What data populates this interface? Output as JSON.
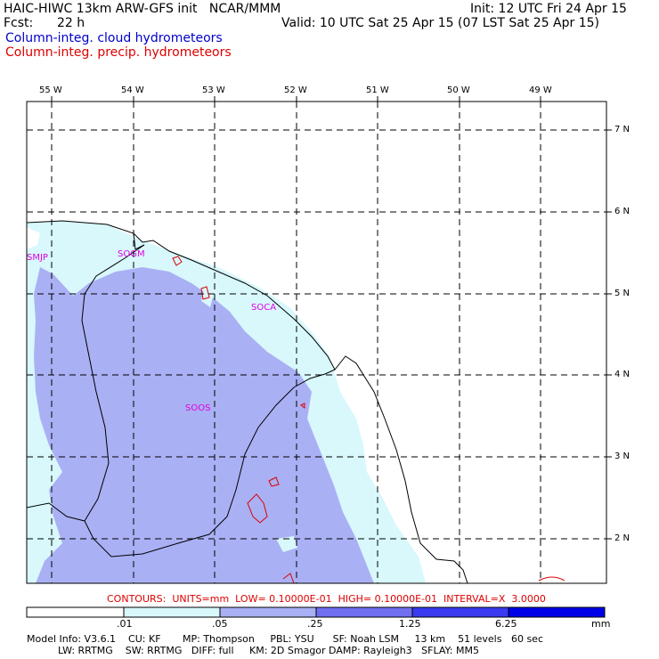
{
  "header": {
    "title_left": "HAIC-HIWC 13km ARW-GFS init   NCAR/MMM",
    "init": "Init: 12 UTC Fri 24 Apr 15",
    "fcst_label": "Fcst:",
    "fcst_value": "22 h",
    "valid": "Valid: 10 UTC Sat 25 Apr 15 (07 LST Sat 25 Apr 15)",
    "field1": "Column-integ. cloud hydrometeors",
    "field2": "Column-integ. precip. hydrometeors",
    "field1_color": "#0000cc",
    "field2_color": "#dd0000"
  },
  "map": {
    "lon_labels": [
      "55 W",
      "54 W",
      "53 W",
      "52 W",
      "51 W",
      "50 W",
      "49 W"
    ],
    "lat_labels": [
      "7 N",
      "6 N",
      "5 N",
      "4 N",
      "3 N",
      "2 N"
    ],
    "stations": [
      "SMJP",
      "SOGM",
      "SOCA",
      "SOOS"
    ],
    "shade_colors": [
      "#ffffff",
      "#d8f8fc",
      "#aab0f4",
      "#6f6ff0",
      "#3a3af0",
      "#0000e8"
    ],
    "contour_color": "#dd0000",
    "station_color": "#e000e0"
  },
  "contours_note": "CONTOURS:  UNITS=mm  LOW= 0.10000E-01  HIGH= 0.10000E-01  INTERVAL=X  3.0000",
  "colorbar": {
    "labels": [
      ".01",
      ".05",
      ".25",
      "1.25",
      "6.25"
    ],
    "units": "mm",
    "colors": [
      "#ffffff",
      "#d8f8fc",
      "#aab0f4",
      "#6f6ff0",
      "#3a3af0",
      "#0000e8"
    ]
  },
  "footer": {
    "line1": "Model Info: V3.6.1    CU: KF       MP: Thompson     PBL: YSU      SF: Noah LSM     13 km    51 levels   60 sec",
    "line2": "          LW: RRTMG    SW: RRTMG   DIFF: full     KM: 2D Smagor DAMP: Rayleigh3   SFLAY: MM5"
  }
}
